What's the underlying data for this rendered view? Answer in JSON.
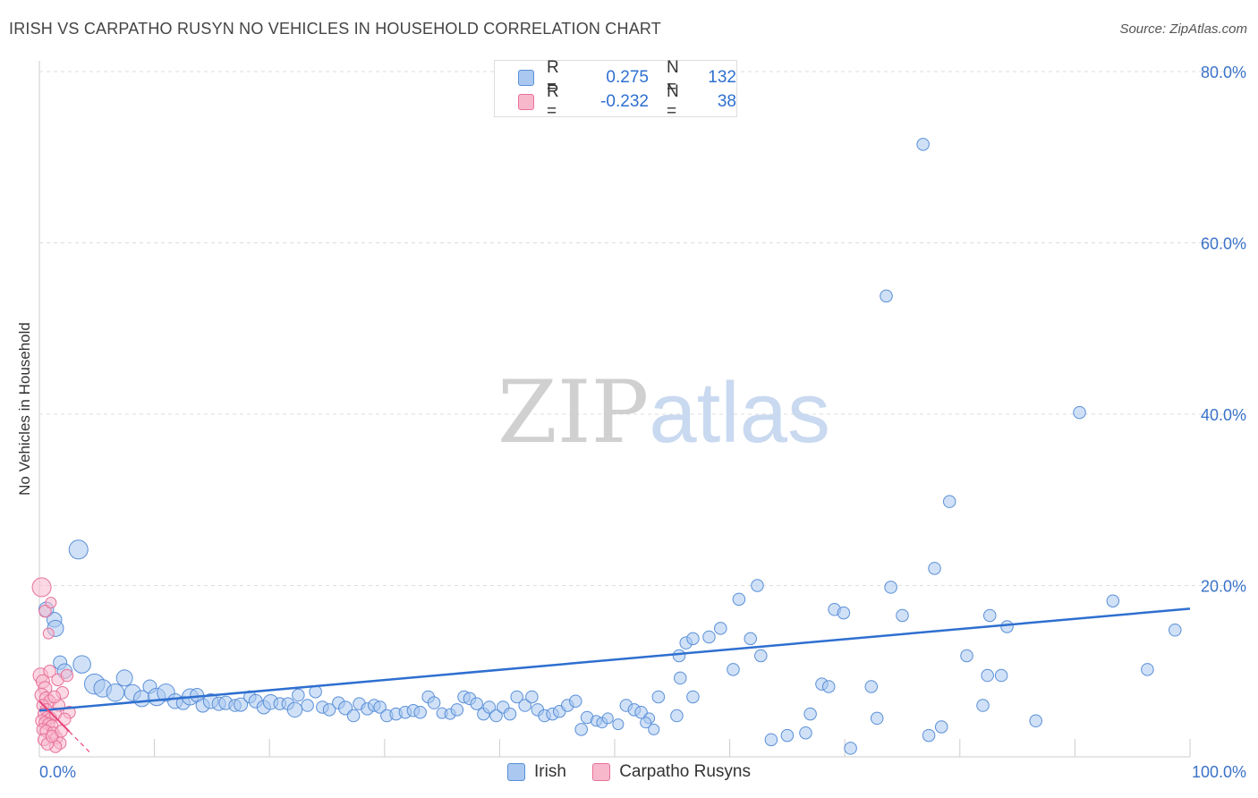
{
  "header": {
    "title": "IRISH VS CARPATHO RUSYN NO VEHICLES IN HOUSEHOLD CORRELATION CHART",
    "source": "Source: ZipAtlas.com"
  },
  "watermark": {
    "zip": "ZIP",
    "atlas": "atlas"
  },
  "legend": {
    "r_label": "R =",
    "n_label": "N =",
    "series": [
      {
        "name": "Irish",
        "r": "0.275",
        "n": "132",
        "fill": "#aac8f0",
        "stroke": "#5a8fd8"
      },
      {
        "name": "Carpatho Rusyns",
        "r": "-0.232",
        "n": "38",
        "fill": "#f8b8cc",
        "stroke": "#e8709a"
      }
    ]
  },
  "colors": {
    "irish_fill": "#aac8f0",
    "irish_stroke": "#5a8fd8",
    "irish_line": "#2e6fd0",
    "rusyn_fill": "#f8b8cc",
    "rusyn_stroke": "#e8709a",
    "rusyn_line": "#e8457a",
    "axis_label": "#3a72c8",
    "grid": "#dddddd"
  },
  "chart_data": {
    "type": "scatter",
    "title": "IRISH VS CARPATHO RUSYN NO VEHICLES IN HOUSEHOLD CORRELATION CHART",
    "xlabel": "",
    "ylabel": "No Vehicles in Household",
    "xlim": [
      0,
      100
    ],
    "ylim": [
      0,
      80
    ],
    "x_tick_labels": [
      {
        "value": 0,
        "label": "0.0%"
      },
      {
        "value": 100,
        "label": "100.0%"
      }
    ],
    "y_tick_labels": [
      {
        "value": 20,
        "label": "20.0%"
      },
      {
        "value": 40,
        "label": "40.0%"
      },
      {
        "value": 60,
        "label": "60.0%"
      },
      {
        "value": 80,
        "label": "80.0%"
      }
    ],
    "grid": true,
    "legend_position": "top-center",
    "series": [
      {
        "name": "Irish",
        "trend": {
          "x": [
            0,
            100
          ],
          "y": [
            5.4,
            17.3
          ]
        },
        "points": [
          [
            0.6,
            17.2,
            11
          ],
          [
            1.3,
            16.0,
            11
          ],
          [
            1.4,
            15.0,
            12
          ],
          [
            1.8,
            11.0,
            10
          ],
          [
            3.4,
            24.2,
            14
          ],
          [
            2.2,
            10.0,
            11
          ],
          [
            3.7,
            10.8,
            13
          ],
          [
            4.8,
            8.5,
            15
          ],
          [
            5.5,
            8.0,
            13
          ],
          [
            6.6,
            7.5,
            13
          ],
          [
            7.4,
            9.2,
            12
          ],
          [
            8.1,
            7.5,
            12
          ],
          [
            8.9,
            6.8,
            12
          ],
          [
            9.6,
            8.2,
            10
          ],
          [
            10.2,
            7.0,
            13
          ],
          [
            11.0,
            7.5,
            13
          ],
          [
            11.8,
            6.5,
            11
          ],
          [
            12.5,
            6.3,
            10
          ],
          [
            13.1,
            7.0,
            12
          ],
          [
            13.7,
            7.2,
            10
          ],
          [
            14.2,
            6.0,
            10
          ],
          [
            14.9,
            6.5,
            11
          ],
          [
            15.6,
            6.2,
            10
          ],
          [
            16.2,
            6.3,
            10
          ],
          [
            17.0,
            6.0,
            9
          ],
          [
            17.5,
            6.1,
            10
          ],
          [
            18.3,
            7.0,
            9
          ],
          [
            18.8,
            6.5,
            10
          ],
          [
            19.5,
            5.8,
            10
          ],
          [
            20.1,
            6.4,
            11
          ],
          [
            20.9,
            6.2,
            9
          ],
          [
            21.6,
            6.2,
            9
          ],
          [
            22.2,
            5.5,
            11
          ],
          [
            22.5,
            7.2,
            9
          ],
          [
            23.3,
            6.0,
            9
          ],
          [
            24.0,
            7.6,
            9
          ],
          [
            24.6,
            5.8,
            9
          ],
          [
            25.2,
            5.5,
            9
          ],
          [
            26.0,
            6.3,
            9
          ],
          [
            26.6,
            5.7,
            10
          ],
          [
            27.3,
            4.8,
            9
          ],
          [
            27.8,
            6.2,
            9
          ],
          [
            28.5,
            5.6,
            9
          ],
          [
            29.1,
            6.0,
            9
          ],
          [
            29.6,
            5.8,
            9
          ],
          [
            30.2,
            4.8,
            9
          ],
          [
            31.0,
            5.0,
            9
          ],
          [
            31.8,
            5.2,
            9
          ],
          [
            32.5,
            5.4,
            9
          ],
          [
            33.1,
            5.2,
            9
          ],
          [
            33.8,
            7.0,
            9
          ],
          [
            34.3,
            6.3,
            9
          ],
          [
            35.0,
            5.1,
            8
          ],
          [
            35.7,
            5.0,
            8
          ],
          [
            36.3,
            5.5,
            9
          ],
          [
            36.9,
            7.0,
            9
          ],
          [
            37.4,
            6.8,
            9
          ],
          [
            38.0,
            6.2,
            9
          ],
          [
            38.6,
            5.0,
            9
          ],
          [
            39.1,
            5.8,
            9
          ],
          [
            39.7,
            4.8,
            9
          ],
          [
            40.3,
            5.8,
            9
          ],
          [
            40.9,
            5.0,
            9
          ],
          [
            41.5,
            7.0,
            9
          ],
          [
            42.2,
            6.0,
            9
          ],
          [
            42.8,
            7.0,
            9
          ],
          [
            43.3,
            5.5,
            9
          ],
          [
            43.9,
            4.8,
            9
          ],
          [
            44.6,
            5.0,
            9
          ],
          [
            45.2,
            5.3,
            9
          ],
          [
            45.9,
            6.0,
            9
          ],
          [
            46.6,
            6.5,
            9
          ],
          [
            47.1,
            3.2,
            9
          ],
          [
            47.6,
            4.6,
            9
          ],
          [
            48.4,
            4.2,
            8
          ],
          [
            48.9,
            4.0,
            8
          ],
          [
            49.4,
            4.5,
            8
          ],
          [
            50.3,
            3.8,
            8
          ],
          [
            51.0,
            6.0,
            9
          ],
          [
            51.7,
            5.5,
            9
          ],
          [
            52.3,
            5.2,
            9
          ],
          [
            53.0,
            4.5,
            8
          ],
          [
            53.8,
            7.0,
            9
          ],
          [
            53.4,
            3.2,
            8
          ],
          [
            55.4,
            4.8,
            9
          ],
          [
            55.7,
            9.2,
            9
          ],
          [
            56.8,
            7.0,
            9
          ],
          [
            56.2,
            13.3,
            9
          ],
          [
            55.6,
            11.8,
            9
          ],
          [
            56.8,
            13.8,
            9
          ],
          [
            58.2,
            14.0,
            9
          ],
          [
            59.2,
            15.0,
            9
          ],
          [
            60.3,
            10.2,
            9
          ],
          [
            60.8,
            18.4,
            9
          ],
          [
            61.8,
            13.8,
            9
          ],
          [
            62.4,
            20.0,
            9
          ],
          [
            62.7,
            11.8,
            9
          ],
          [
            63.6,
            2.0,
            9
          ],
          [
            65.0,
            2.5,
            9
          ],
          [
            66.6,
            2.8,
            9
          ],
          [
            67.0,
            5.0,
            9
          ],
          [
            68.0,
            8.5,
            9
          ],
          [
            68.6,
            8.2,
            9
          ],
          [
            69.1,
            17.2,
            9
          ],
          [
            69.9,
            16.8,
            9
          ],
          [
            70.5,
            1.0,
            9
          ],
          [
            72.3,
            8.2,
            9
          ],
          [
            72.8,
            4.5,
            9
          ],
          [
            74.0,
            19.8,
            9
          ],
          [
            75.0,
            16.5,
            9
          ],
          [
            76.8,
            71.5,
            9
          ],
          [
            73.6,
            53.8,
            9
          ],
          [
            77.3,
            2.5,
            9
          ],
          [
            77.8,
            22.0,
            9
          ],
          [
            78.4,
            3.5,
            9
          ],
          [
            79.1,
            29.8,
            9
          ],
          [
            80.6,
            11.8,
            9
          ],
          [
            82.0,
            6.0,
            9
          ],
          [
            82.4,
            9.5,
            9
          ],
          [
            83.6,
            9.5,
            9
          ],
          [
            82.6,
            16.5,
            9
          ],
          [
            84.1,
            15.2,
            9
          ],
          [
            86.6,
            4.2,
            9
          ],
          [
            90.4,
            40.2,
            9
          ],
          [
            93.3,
            18.2,
            9
          ],
          [
            96.3,
            10.2,
            9
          ],
          [
            98.7,
            14.8,
            9
          ],
          [
            52.7,
            4.0,
            8
          ]
        ]
      },
      {
        "name": "Carpatho Rusyns",
        "trend": {
          "x": [
            0,
            4.4
          ],
          "y": [
            6.5,
            0.5
          ]
        },
        "points": [
          [
            0.2,
            19.8,
            14
          ],
          [
            0.5,
            17.0,
            9
          ],
          [
            1.0,
            18.0,
            8
          ],
          [
            0.8,
            14.4,
            8
          ],
          [
            0.1,
            9.5,
            11
          ],
          [
            0.3,
            8.8,
            10
          ],
          [
            0.5,
            8.0,
            10
          ],
          [
            0.2,
            7.2,
            10
          ],
          [
            0.6,
            6.8,
            10
          ],
          [
            0.9,
            6.5,
            9
          ],
          [
            0.3,
            6.0,
            9
          ],
          [
            0.6,
            5.5,
            9
          ],
          [
            0.4,
            5.0,
            9
          ],
          [
            0.7,
            4.6,
            9
          ],
          [
            1.0,
            4.5,
            9
          ],
          [
            0.2,
            4.2,
            9
          ],
          [
            0.5,
            4.0,
            9
          ],
          [
            0.8,
            3.8,
            9
          ],
          [
            1.1,
            3.6,
            9
          ],
          [
            0.3,
            3.2,
            9
          ],
          [
            0.6,
            3.0,
            9
          ],
          [
            1.2,
            2.8,
            9
          ],
          [
            1.5,
            2.2,
            9
          ],
          [
            1.8,
            1.6,
            9
          ],
          [
            1.4,
            1.2,
            9
          ],
          [
            2.0,
            7.5,
            9
          ],
          [
            1.7,
            6.0,
            9
          ],
          [
            1.4,
            5.0,
            9
          ],
          [
            2.6,
            5.2,
            9
          ],
          [
            2.2,
            4.4,
            9
          ],
          [
            1.6,
            9.0,
            9
          ],
          [
            2.4,
            9.5,
            9
          ],
          [
            0.9,
            10.0,
            9
          ],
          [
            1.3,
            7.0,
            9
          ],
          [
            0.4,
            2.0,
            9
          ],
          [
            0.7,
            1.5,
            9
          ],
          [
            1.1,
            2.4,
            9
          ],
          [
            1.9,
            3.0,
            9
          ]
        ]
      }
    ]
  }
}
